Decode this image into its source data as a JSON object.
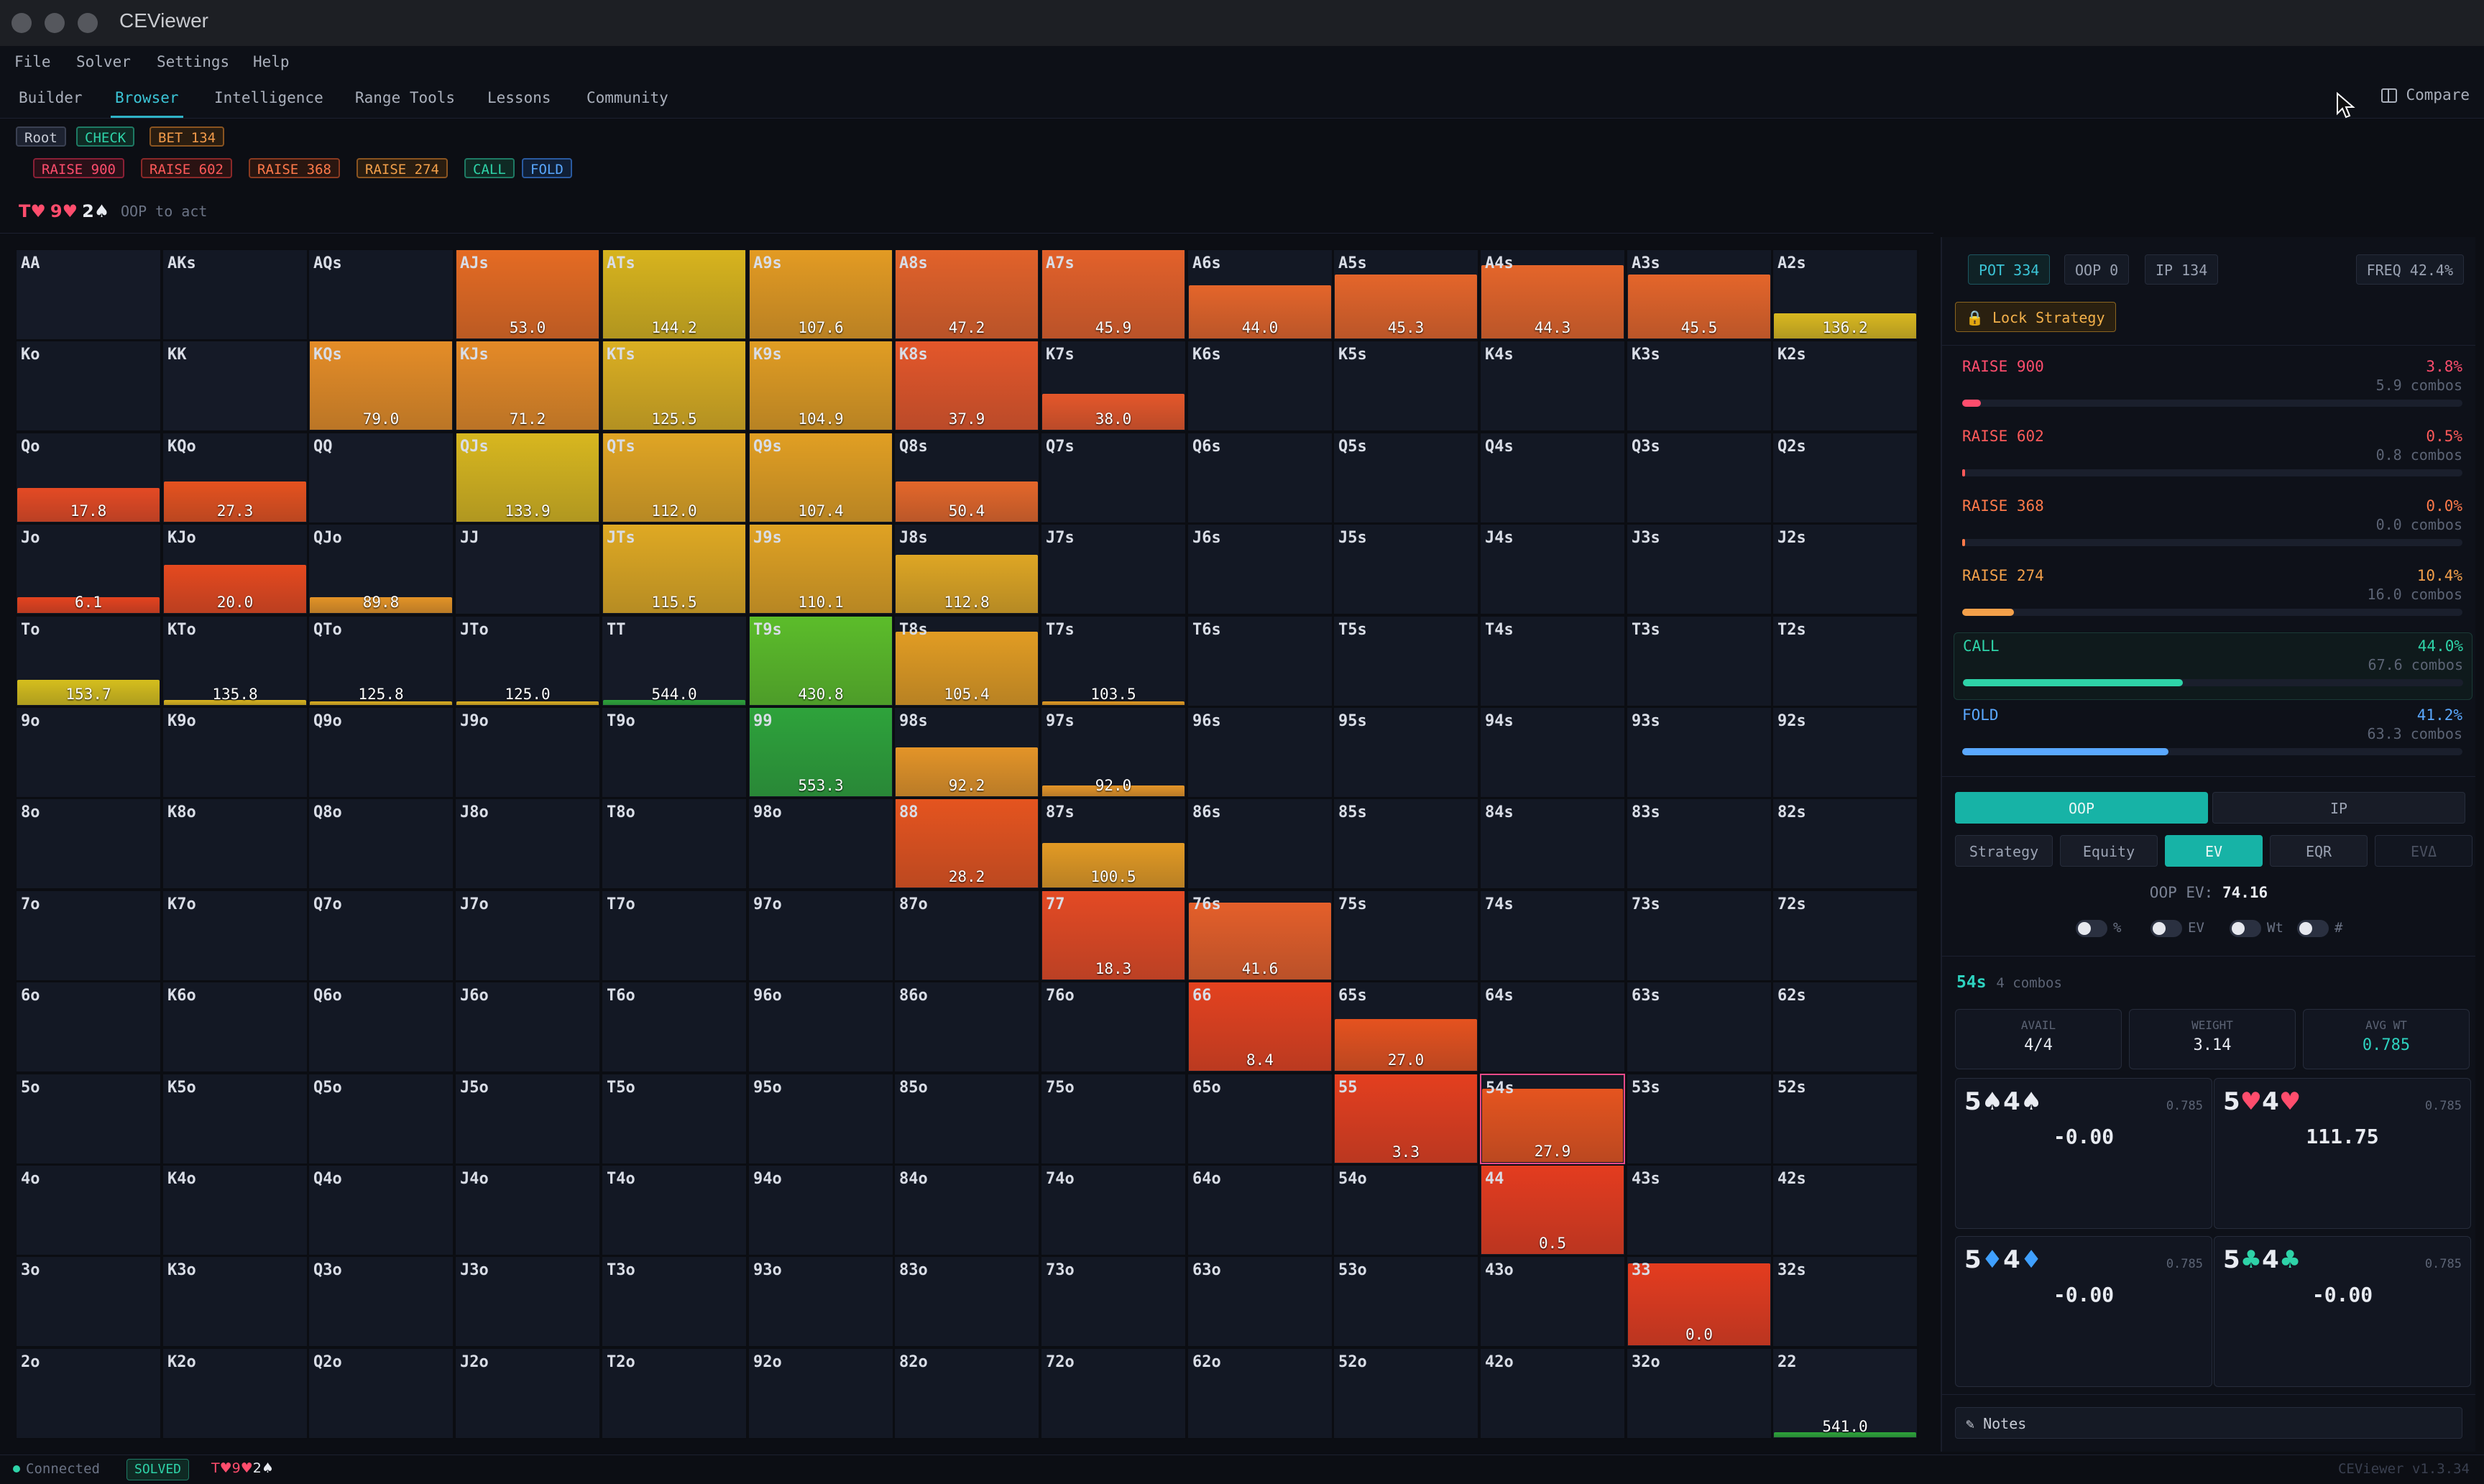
{
  "app": {
    "title": "CEViewer",
    "version": "CEViewer v1.3.34"
  },
  "menu": [
    "File",
    "Solver",
    "Settings",
    "Help"
  ],
  "tabs": [
    "Builder",
    "Browser",
    "Intelligence",
    "Range Tools",
    "Lessons",
    "Community"
  ],
  "active_tab": "Browser",
  "compare_label": "Compare",
  "action_path": [
    {
      "label": "Root",
      "color": "#c8ccd6",
      "bg": "#1d2230",
      "border": "#3a4052"
    },
    {
      "label": "CHECK",
      "color": "#2ed3a8",
      "bg": "#0f2a24",
      "border": "#1e7a64"
    },
    {
      "label": "BET 134",
      "color": "#f39b4a",
      "bg": "#2a1d10",
      "border": "#8a5420"
    }
  ],
  "action_options": [
    {
      "label": "RAISE 900",
      "color": "#ff4d6d",
      "bg": "#2a1018",
      "border": "#8a2036"
    },
    {
      "label": "RAISE 602",
      "color": "#ff5a5a",
      "bg": "#2a1212",
      "border": "#8a2828"
    },
    {
      "label": "RAISE 368",
      "color": "#ff7a4a",
      "bg": "#2a1610",
      "border": "#8a3a20"
    },
    {
      "label": "RAISE 274",
      "color": "#f3a04a",
      "bg": "#2a1d10",
      "border": "#8a5420"
    },
    {
      "label": "CALL",
      "color": "#2ed3a8",
      "bg": "#0f2a24",
      "border": "#1e7a64"
    },
    {
      "label": "FOLD",
      "color": "#5aa8ff",
      "bg": "#101f36",
      "border": "#2a5aa0"
    }
  ],
  "board": {
    "cards": [
      {
        "rank": "T",
        "suit": "♥",
        "color": "#ff4d6d"
      },
      {
        "rank": "9",
        "suit": "♥",
        "color": "#ff4d6d"
      },
      {
        "rank": "2",
        "suit": "♠",
        "color": "#e8ebf1"
      }
    ],
    "status": "OOP to act"
  },
  "grid": {
    "labels": [
      [
        "AA",
        "AKs",
        "AQs",
        "AJs",
        "ATs",
        "A9s",
        "A8s",
        "A7s",
        "A6s",
        "A5s",
        "A4s",
        "A3s",
        "A2s"
      ],
      [
        "Ko",
        "KK",
        "KQs",
        "KJs",
        "KTs",
        "K9s",
        "K8s",
        "K7s",
        "K6s",
        "K5s",
        "K4s",
        "K3s",
        "K2s"
      ],
      [
        "Qo",
        "KQo",
        "QQ",
        "QJs",
        "QTs",
        "Q9s",
        "Q8s",
        "Q7s",
        "Q6s",
        "Q5s",
        "Q4s",
        "Q3s",
        "Q2s"
      ],
      [
        "Jo",
        "KJo",
        "QJo",
        "JJ",
        "JTs",
        "J9s",
        "J8s",
        "J7s",
        "J6s",
        "J5s",
        "J4s",
        "J3s",
        "J2s"
      ],
      [
        "To",
        "KTo",
        "QTo",
        "JTo",
        "TT",
        "T9s",
        "T8s",
        "T7s",
        "T6s",
        "T5s",
        "T4s",
        "T3s",
        "T2s"
      ],
      [
        "9o",
        "K9o",
        "Q9o",
        "J9o",
        "T9o",
        "99",
        "98s",
        "97s",
        "96s",
        "95s",
        "94s",
        "93s",
        "92s"
      ],
      [
        "8o",
        "K8o",
        "Q8o",
        "J8o",
        "T8o",
        "98o",
        "88",
        "87s",
        "86s",
        "85s",
        "84s",
        "83s",
        "82s"
      ],
      [
        "7o",
        "K7o",
        "Q7o",
        "J7o",
        "T7o",
        "97o",
        "87o",
        "77",
        "76s",
        "75s",
        "74s",
        "73s",
        "72s"
      ],
      [
        "6o",
        "K6o",
        "Q6o",
        "J6o",
        "T6o",
        "96o",
        "86o",
        "76o",
        "66",
        "65s",
        "64s",
        "63s",
        "62s"
      ],
      [
        "5o",
        "K5o",
        "Q5o",
        "J5o",
        "T5o",
        "95o",
        "85o",
        "75o",
        "65o",
        "55",
        "54s",
        "53s",
        "52s"
      ],
      [
        "4o",
        "K4o",
        "Q4o",
        "J4o",
        "T4o",
        "94o",
        "84o",
        "74o",
        "64o",
        "54o",
        "44",
        "43s",
        "42s"
      ],
      [
        "3o",
        "K3o",
        "Q3o",
        "J3o",
        "T3o",
        "93o",
        "83o",
        "73o",
        "63o",
        "53o",
        "43o",
        "33",
        "32s"
      ],
      [
        "2o",
        "K2o",
        "Q2o",
        "J2o",
        "T2o",
        "92o",
        "82o",
        "72o",
        "62o",
        "52o",
        "42o",
        "32o",
        "22"
      ]
    ],
    "values": [
      {
        "r": 0,
        "c": 3,
        "ev": "53.0",
        "h": 1.0,
        "color": "#e56b23"
      },
      {
        "r": 0,
        "c": 4,
        "ev": "144.2",
        "h": 1.0,
        "color": "#d8b41e"
      },
      {
        "r": 0,
        "c": 5,
        "ev": "107.6",
        "h": 1.0,
        "color": "#e39b23"
      },
      {
        "r": 0,
        "c": 6,
        "ev": "47.2",
        "h": 1.0,
        "color": "#e2622a"
      },
      {
        "r": 0,
        "c": 7,
        "ev": "45.9",
        "h": 1.0,
        "color": "#e3612a"
      },
      {
        "r": 0,
        "c": 8,
        "ev": "44.0",
        "h": 0.6,
        "color": "#e4652a"
      },
      {
        "r": 0,
        "c": 9,
        "ev": "45.3",
        "h": 0.72,
        "color": "#e4652a"
      },
      {
        "r": 0,
        "c": 10,
        "ev": "44.3",
        "h": 0.82,
        "color": "#e4652a"
      },
      {
        "r": 0,
        "c": 11,
        "ev": "45.5",
        "h": 0.72,
        "color": "#e4652a"
      },
      {
        "r": 0,
        "c": 12,
        "ev": "136.2",
        "h": 0.28,
        "color": "#d9b820"
      },
      {
        "r": 1,
        "c": 2,
        "ev": "79.0",
        "h": 1.0,
        "color": "#e58d27"
      },
      {
        "r": 1,
        "c": 3,
        "ev": "71.2",
        "h": 1.0,
        "color": "#e58a27"
      },
      {
        "r": 1,
        "c": 4,
        "ev": "125.5",
        "h": 1.0,
        "color": "#dbaf22"
      },
      {
        "r": 1,
        "c": 5,
        "ev": "104.9",
        "h": 1.0,
        "color": "#e19d23"
      },
      {
        "r": 1,
        "c": 6,
        "ev": "37.9",
        "h": 1.0,
        "color": "#e4572a"
      },
      {
        "r": 1,
        "c": 7,
        "ev": "38.0",
        "h": 0.4,
        "color": "#e4572a"
      },
      {
        "r": 2,
        "c": 0,
        "ev": "17.8",
        "h": 0.38,
        "color": "#e44a24"
      },
      {
        "r": 2,
        "c": 1,
        "ev": "27.3",
        "h": 0.45,
        "color": "#e5521f"
      },
      {
        "r": 2,
        "c": 3,
        "ev": "133.9",
        "h": 1.0,
        "color": "#d8b71f"
      },
      {
        "r": 2,
        "c": 4,
        "ev": "112.0",
        "h": 1.0,
        "color": "#e0a524"
      },
      {
        "r": 2,
        "c": 5,
        "ev": "107.4",
        "h": 1.0,
        "color": "#e19f23"
      },
      {
        "r": 2,
        "c": 6,
        "ev": "50.4",
        "h": 0.45,
        "color": "#e4672a"
      },
      {
        "r": 3,
        "c": 0,
        "ev": "6.1",
        "h": 0.18,
        "color": "#e4431f"
      },
      {
        "r": 3,
        "c": 1,
        "ev": "20.0",
        "h": 0.54,
        "color": "#e5491f"
      },
      {
        "r": 3,
        "c": 2,
        "ev": "89.8",
        "h": 0.18,
        "color": "#e39326"
      },
      {
        "r": 3,
        "c": 4,
        "ev": "115.5",
        "h": 1.0,
        "color": "#dfa923"
      },
      {
        "r": 3,
        "c": 5,
        "ev": "110.1",
        "h": 1.0,
        "color": "#e0a223"
      },
      {
        "r": 3,
        "c": 6,
        "ev": "112.8",
        "h": 0.65,
        "color": "#dea624"
      },
      {
        "r": 4,
        "c": 0,
        "ev": "153.7",
        "h": 0.28,
        "color": "#d5be1d"
      },
      {
        "r": 4,
        "c": 1,
        "ev": "135.8",
        "h": 0.06,
        "color": "#d9b41f"
      },
      {
        "r": 4,
        "c": 2,
        "ev": "125.8",
        "h": 0.0,
        "color": "#dbae21"
      },
      {
        "r": 4,
        "c": 3,
        "ev": "125.0",
        "h": 0.04,
        "color": "#dbae21"
      },
      {
        "r": 4,
        "c": 4,
        "ev": "544.0",
        "h": 0.06,
        "color": "#2ea43a"
      },
      {
        "r": 4,
        "c": 5,
        "ev": "430.8",
        "h": 1.0,
        "color": "#5cbd2a"
      },
      {
        "r": 4,
        "c": 6,
        "ev": "105.4",
        "h": 0.82,
        "color": "#e19c23"
      },
      {
        "r": 4,
        "c": 7,
        "ev": "103.5",
        "h": 0.0,
        "color": "#e29b23"
      },
      {
        "r": 5,
        "c": 5,
        "ev": "553.3",
        "h": 1.0,
        "color": "#2ea33b"
      },
      {
        "r": 5,
        "c": 6,
        "ev": "92.2",
        "h": 0.55,
        "color": "#e39428"
      },
      {
        "r": 5,
        "c": 7,
        "ev": "92.0",
        "h": 0.12,
        "color": "#e39428"
      },
      {
        "r": 6,
        "c": 6,
        "ev": "28.2",
        "h": 1.0,
        "color": "#e5541f"
      },
      {
        "r": 6,
        "c": 7,
        "ev": "100.5",
        "h": 0.5,
        "color": "#e29a24"
      },
      {
        "r": 7,
        "c": 7,
        "ev": "18.3",
        "h": 1.0,
        "color": "#e44a24"
      },
      {
        "r": 7,
        "c": 8,
        "ev": "41.6",
        "h": 0.86,
        "color": "#e45f2a"
      },
      {
        "r": 8,
        "c": 8,
        "ev": "8.4",
        "h": 1.0,
        "color": "#e4421f"
      },
      {
        "r": 8,
        "c": 9,
        "ev": "27.0",
        "h": 0.58,
        "color": "#e5521f"
      },
      {
        "r": 9,
        "c": 9,
        "ev": "3.3",
        "h": 1.0,
        "color": "#e43f1f"
      },
      {
        "r": 9,
        "c": 10,
        "ev": "27.9",
        "h": 0.82,
        "color": "#e5541f"
      },
      {
        "r": 10,
        "c": 10,
        "ev": "0.5",
        "h": 1.0,
        "color": "#e43c1f"
      },
      {
        "r": 11,
        "c": 11,
        "ev": "0.0",
        "h": 0.92,
        "color": "#e43c1f"
      },
      {
        "r": 12,
        "c": 12,
        "ev": "541.0",
        "h": 0.06,
        "color": "#2ea43a"
      }
    ],
    "selected": "54s"
  },
  "panel": {
    "pot": "POT 334",
    "oop": "OOP 0",
    "ip": "IP 134",
    "freq": "FREQ 42.4%",
    "lock_label": "Lock Strategy",
    "actions": [
      {
        "name": "RAISE 900",
        "pct": "3.8%",
        "combos": "5.9 combos",
        "freq": 0.038,
        "color": "#ff4d6d"
      },
      {
        "name": "RAISE 602",
        "pct": "0.5%",
        "combos": "0.8 combos",
        "freq": 0.005,
        "color": "#ff5a5a"
      },
      {
        "name": "RAISE 368",
        "pct": "0.0%",
        "combos": "0.0 combos",
        "freq": 0.0,
        "color": "#ff7a4a"
      },
      {
        "name": "RAISE 274",
        "pct": "10.4%",
        "combos": "16.0 combos",
        "freq": 0.104,
        "color": "#f3a04a"
      },
      {
        "name": "CALL",
        "pct": "44.0%",
        "combos": "67.6 combos",
        "freq": 0.44,
        "color": "#2ed3a8"
      },
      {
        "name": "FOLD",
        "pct": "41.2%",
        "combos": "63.3 combos",
        "freq": 0.412,
        "color": "#5aa8ff"
      }
    ],
    "player_tabs": [
      "OOP",
      "IP"
    ],
    "metric_tabs": [
      "Strategy",
      "Equity",
      "EV",
      "EQR",
      "EVΔ"
    ],
    "active_metric": "EV",
    "ev_label": "OOP EV:",
    "ev_value": "74.16",
    "toggles": [
      "%",
      "EV",
      "Wt",
      "#"
    ],
    "hand": {
      "name": "54s",
      "combos": "4 combos",
      "avail_label": "AVAIL",
      "avail": "4/4",
      "weight_label": "WEIGHT",
      "weight": "3.14",
      "avg_label": "AVG WT",
      "avg": "0.785"
    },
    "combos": [
      {
        "c1": "5",
        "s1": "♠",
        "c2": "4",
        "s2": "♠",
        "color": "#e8ebf1",
        "w": "0.785",
        "ev": "-0.00"
      },
      {
        "c1": "5",
        "s1": "♥",
        "c2": "4",
        "s2": "♥",
        "color": "#ff4d6d",
        "w": "0.785",
        "ev": "111.75"
      },
      {
        "c1": "5",
        "s1": "♦",
        "c2": "4",
        "s2": "♦",
        "color": "#3fa0ff",
        "w": "0.785",
        "ev": "-0.00"
      },
      {
        "c1": "5",
        "s1": "♣",
        "c2": "4",
        "s2": "♣",
        "color": "#2ed3a8",
        "w": "0.785",
        "ev": "-0.00"
      }
    ],
    "notes_label": "Notes"
  },
  "status": {
    "connected": "Connected",
    "solved": "SOLVED",
    "board": [
      {
        "t": "T♥",
        "color": "#ff4d6d"
      },
      {
        "t": "9♥",
        "color": "#ff4d6d"
      },
      {
        "t": "2♠",
        "color": "#e8ebf1"
      }
    ]
  },
  "colors": {
    "accent": "#17b3a6",
    "tab_active": "#3bc4d6",
    "selected_border": "#e84a8a"
  }
}
